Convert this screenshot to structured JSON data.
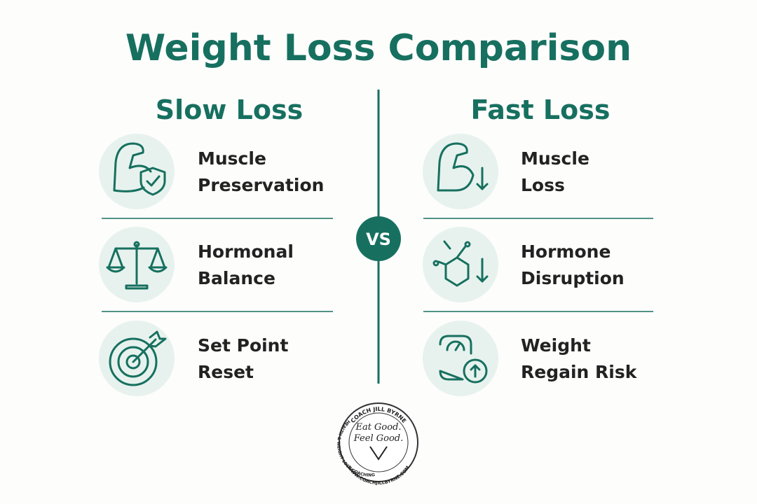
{
  "title": "Weight Loss Comparison",
  "divider": "VS",
  "columns": [
    {
      "heading": "Slow Loss",
      "items": [
        {
          "lines": [
            "Muscle",
            "Preservation"
          ]
        },
        {
          "lines": [
            "Hormonal",
            "Balance"
          ]
        },
        {
          "lines": [
            "Set Point",
            "Reset"
          ]
        }
      ]
    },
    {
      "heading": "Fast Loss",
      "items": [
        {
          "lines": [
            "Muscle",
            "Loss"
          ]
        },
        {
          "lines": [
            "Hormone",
            "Disruption"
          ]
        },
        {
          "lines": [
            "Weight",
            "Regain Risk"
          ]
        }
      ]
    }
  ],
  "logo": {
    "top": "COACH JILL BYRNE",
    "line1": "Eat Good.",
    "line2": "Feel Good.",
    "left": "HEALTH & WEIGHT LOSS COACHING",
    "bottom": "WWW.COACHJILLBYRNE.COM"
  }
}
